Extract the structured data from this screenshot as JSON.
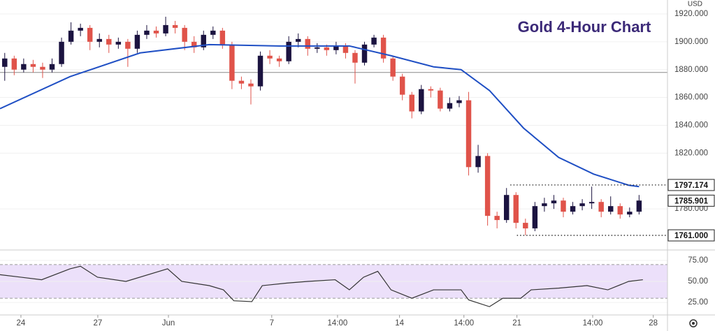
{
  "chart_data": [
    {
      "type": "candlestick",
      "title": "Gold 4-Hour Chart",
      "currency": "USD",
      "x": [
        0,
        1,
        2,
        3,
        4,
        5,
        6,
        7,
        8,
        9,
        10,
        11,
        12,
        13,
        14,
        15,
        16,
        17,
        18,
        19,
        20,
        21,
        22,
        23,
        24,
        25,
        26,
        27,
        28,
        29,
        30,
        31,
        32,
        33,
        34,
        35,
        36,
        37,
        38,
        39,
        40,
        41,
        42,
        43,
        44,
        45,
        46,
        47,
        48,
        49,
        50,
        51,
        52,
        53,
        54,
        55,
        56,
        57,
        58,
        59,
        60,
        61,
        62,
        63,
        64,
        65,
        66,
        67
      ],
      "open": [
        1882,
        1888,
        1880,
        1884,
        1882,
        1880,
        1884,
        1900,
        1908,
        1910,
        1900,
        1902,
        1898,
        1900,
        1895,
        1905,
        1908,
        1906,
        1912,
        1910,
        1900,
        1896,
        1905,
        1908,
        1898,
        1872,
        1870,
        1868,
        1890,
        1888,
        1886,
        1900,
        1902,
        1895,
        1896,
        1894,
        1897,
        1892,
        1885,
        1898,
        1903,
        1888,
        1875,
        1862,
        1850,
        1866,
        1865,
        1852,
        1856,
        1858,
        1810,
        1818,
        1775,
        1772,
        1790,
        1770,
        1766,
        1782,
        1784,
        1786,
        1778,
        1782,
        1784,
        1785,
        1778,
        1782,
        1776,
        1778
      ],
      "high": [
        1892,
        1890,
        1888,
        1887,
        1885,
        1888,
        1903,
        1914,
        1913,
        1912,
        1906,
        1905,
        1903,
        1902,
        1908,
        1912,
        1911,
        1918,
        1915,
        1912,
        1904,
        1908,
        1911,
        1910,
        1900,
        1875,
        1873,
        1893,
        1894,
        1890,
        1904,
        1906,
        1904,
        1899,
        1898,
        1900,
        1899,
        1894,
        1900,
        1905,
        1905,
        1890,
        1877,
        1864,
        1869,
        1868,
        1867,
        1860,
        1861,
        1864,
        1826,
        1820,
        1778,
        1795,
        1792,
        1773,
        1785,
        1788,
        1790,
        1788,
        1785,
        1787,
        1796,
        1787,
        1789,
        1784,
        1781,
        1790
      ],
      "low": [
        1872,
        1876,
        1878,
        1878,
        1874,
        1878,
        1882,
        1898,
        1904,
        1894,
        1896,
        1892,
        1895,
        1882,
        1892,
        1902,
        1903,
        1904,
        1906,
        1894,
        1892,
        1894,
        1902,
        1895,
        1866,
        1866,
        1855,
        1865,
        1884,
        1882,
        1884,
        1896,
        1890,
        1892,
        1890,
        1891,
        1888,
        1870,
        1883,
        1896,
        1885,
        1872,
        1858,
        1845,
        1848,
        1860,
        1850,
        1850,
        1853,
        1804,
        1806,
        1768,
        1766,
        1770,
        1766,
        1761,
        1764,
        1778,
        1780,
        1774,
        1776,
        1779,
        1780,
        1774,
        1776,
        1773,
        1774,
        1776
      ],
      "close": [
        1888,
        1880,
        1884,
        1882,
        1880,
        1884,
        1900,
        1908,
        1910,
        1900,
        1902,
        1898,
        1900,
        1895,
        1905,
        1908,
        1906,
        1912,
        1910,
        1900,
        1896,
        1905,
        1908,
        1898,
        1872,
        1870,
        1868,
        1890,
        1888,
        1886,
        1900,
        1902,
        1895,
        1896,
        1894,
        1897,
        1892,
        1885,
        1898,
        1903,
        1888,
        1875,
        1862,
        1850,
        1866,
        1865,
        1852,
        1856,
        1858,
        1810,
        1818,
        1775,
        1772,
        1790,
        1770,
        1766,
        1782,
        1784,
        1786,
        1778,
        1782,
        1784,
        1785,
        1778,
        1782,
        1776,
        1778,
        1786
      ],
      "up_color": "#1b1340",
      "down_color": "#e0534a",
      "moving_average": {
        "color": "#1f4fc4",
        "x": [
          -0.5,
          6.9,
          14.3,
          21.6,
          29,
          36.4,
          40.8,
          45.3,
          48.2,
          51.2,
          54.8,
          58.5,
          62.2,
          65.9,
          67
        ],
        "values": [
          1852,
          1875,
          1892,
          1898,
          1897,
          1897,
          1890,
          1882,
          1880,
          1865,
          1838,
          1817,
          1805,
          1797,
          1796
        ]
      },
      "reference_line": 1878,
      "price_levels": [
        {
          "value": 1797.174,
          "label": "1797.174",
          "x": 53.4
        },
        {
          "value": 1761.0,
          "label": "1761.000",
          "x": 54.1
        }
      ],
      "last_price": {
        "value": 1785.901,
        "label": "1785.901"
      },
      "xlim": [
        -0.5,
        70
      ],
      "ylim": [
        1752,
        1930
      ],
      "yticks": [
        {
          "value": 1920,
          "label": "1920.000"
        },
        {
          "value": 1900,
          "label": "1900.000"
        },
        {
          "value": 1880,
          "label": "1880.000"
        },
        {
          "value": 1860,
          "label": "1860.000"
        },
        {
          "value": 1840,
          "label": "1840.000"
        },
        {
          "value": 1820,
          "label": "1820.000"
        },
        {
          "value": 1780,
          "label": "1780.000"
        }
      ]
    },
    {
      "type": "line",
      "color": "#333333",
      "band": [
        30,
        70
      ],
      "band_color": "#ece0fa",
      "x": [
        -0.5,
        1.7,
        3.9,
        6.9,
        8,
        9.8,
        12.8,
        17.2,
        18.7,
        21.6,
        23.1,
        24.2,
        26.1,
        27.2,
        29.8,
        32,
        34.9,
        36.4,
        37.9,
        39.4,
        40.8,
        43.0,
        45.3,
        48.2,
        49,
        51.2,
        52.6,
        54.5,
        55.6,
        58.5,
        61.5,
        63.7,
        65.9,
        67.4
      ],
      "values": [
        58,
        55,
        52,
        65,
        68,
        55,
        50,
        65,
        50,
        45,
        40,
        27,
        26,
        45,
        48,
        50,
        52,
        40,
        55,
        62,
        40,
        30,
        40,
        40,
        28,
        20,
        30,
        30,
        40,
        42,
        45,
        40,
        50,
        52
      ],
      "xlim": [
        -0.5,
        70
      ],
      "ylim": [
        11,
        84
      ],
      "yticks": [
        {
          "value": 75,
          "label": "75.00"
        },
        {
          "value": 50,
          "label": "50.00"
        },
        {
          "value": 25,
          "label": "25.00"
        }
      ],
      "xticks": [
        {
          "value": 1.71,
          "label": "24"
        },
        {
          "value": 9.83,
          "label": "27"
        },
        {
          "value": 17.29,
          "label": "Jun"
        },
        {
          "value": 28.2,
          "label": "7"
        },
        {
          "value": 35.15,
          "label": "14:00"
        },
        {
          "value": 41.7,
          "label": "14"
        },
        {
          "value": 48.5,
          "label": "14:00"
        },
        {
          "value": 54.1,
          "label": "21"
        },
        {
          "value": 62.1,
          "label": "14:00"
        },
        {
          "value": 68.5,
          "label": "28"
        }
      ]
    }
  ]
}
